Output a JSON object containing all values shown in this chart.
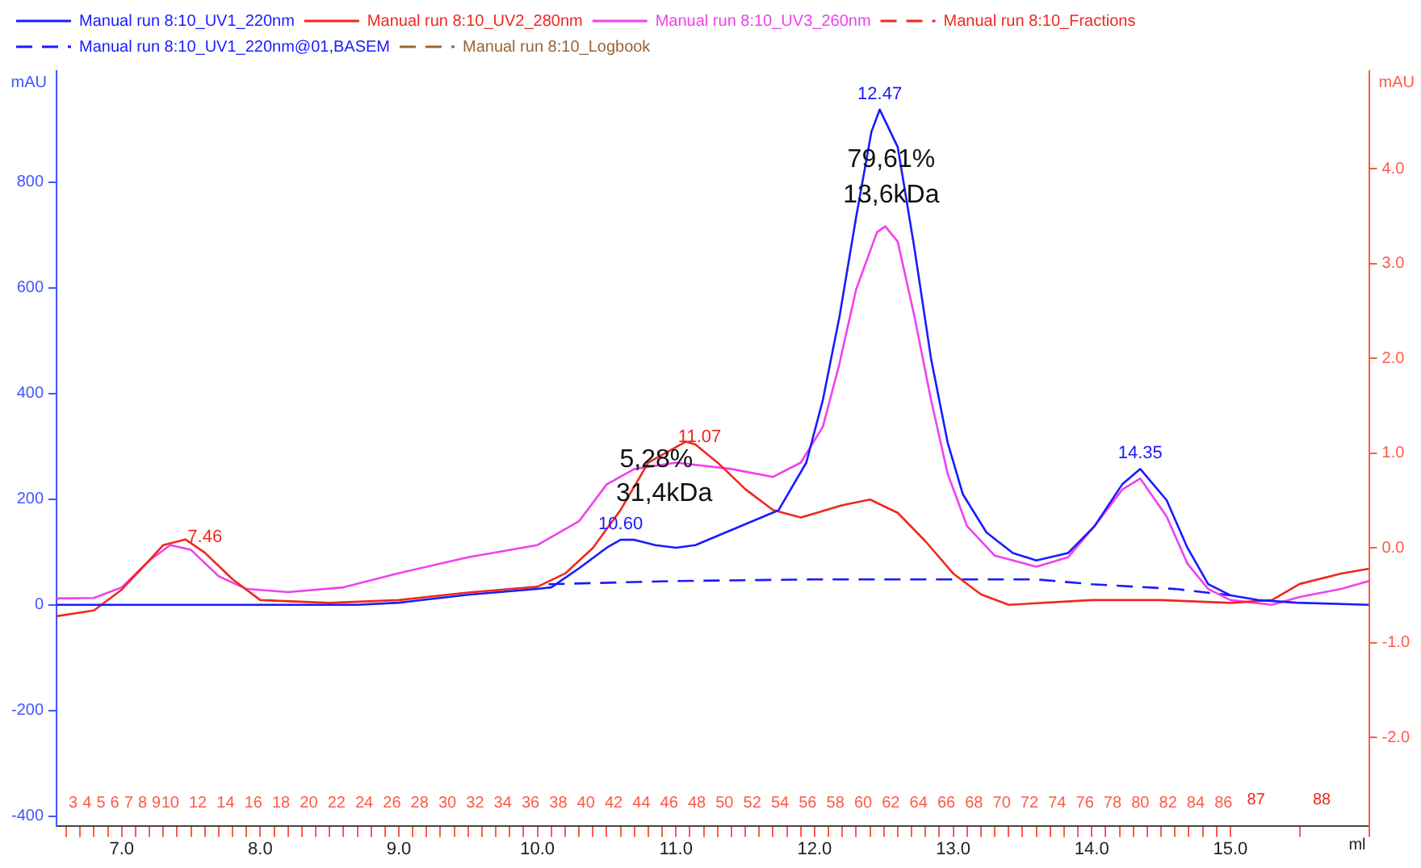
{
  "chart_data": {
    "type": "line",
    "xlabel": "ml",
    "ylabel": "mAU",
    "y2label": "mAU",
    "legend": "top left",
    "marker": "none",
    "xlim": [
      6.53,
      16.0
    ],
    "ylim": [
      -418,
      1010
    ],
    "y2lim": [
      -2.93,
      5.03
    ],
    "x2lim": [
      1.8,
      96.5
    ],
    "xticks": [
      {
        "value": 7,
        "label": "7.0"
      },
      {
        "value": 8,
        "label": "8.0"
      },
      {
        "value": 9,
        "label": "9.0"
      },
      {
        "value": 10,
        "label": "10.0"
      },
      {
        "value": 11,
        "label": "11.0"
      },
      {
        "value": 12,
        "label": "12.0"
      },
      {
        "value": 13,
        "label": "13.0"
      },
      {
        "value": 14,
        "label": "14.0"
      },
      {
        "value": 15,
        "label": "15.0"
      }
    ],
    "yticks": [
      -400,
      -200,
      0,
      200,
      400,
      600,
      800
    ],
    "y2ticks": [
      {
        "value": -2,
        "label": "-2.0"
      },
      {
        "value": -1,
        "label": "-1.0"
      },
      {
        "value": 0,
        "label": "0.0"
      },
      {
        "value": 1,
        "label": "1.0"
      },
      {
        "value": 2,
        "label": "2.0"
      },
      {
        "value": 3,
        "label": "3.0"
      },
      {
        "value": 4,
        "label": "4.0"
      }
    ],
    "x2ticks": [
      {
        "value": 2.5,
        "label": null
      },
      {
        "value": 3.5,
        "label": null
      },
      {
        "value": 4.5,
        "label": null
      },
      {
        "value": 5.5,
        "label": null
      },
      {
        "value": 6.5,
        "label": null
      },
      {
        "value": 7.5,
        "label": null
      },
      {
        "value": 8.5,
        "label": null
      },
      {
        "value": 9.5,
        "label": null
      },
      {
        "value": 10.5,
        "label": null
      },
      {
        "value": 11.5,
        "label": null
      },
      {
        "value": 12.5,
        "label": null
      },
      {
        "value": 13.5,
        "label": null
      },
      {
        "value": 14.5,
        "label": null
      },
      {
        "value": 15.5,
        "label": null
      },
      {
        "value": 16.5,
        "label": null
      },
      {
        "value": 17.5,
        "label": null
      },
      {
        "value": 18.5,
        "label": null
      },
      {
        "value": 19.5,
        "label": null
      },
      {
        "value": 20.5,
        "label": null
      },
      {
        "value": 21.5,
        "label": null
      },
      {
        "value": 22.5,
        "label": null
      },
      {
        "value": 23.5,
        "label": null
      },
      {
        "value": 24.5,
        "label": null
      },
      {
        "value": 25.5,
        "label": null
      },
      {
        "value": 26.5,
        "label": null
      },
      {
        "value": 27.5,
        "label": null
      },
      {
        "value": 28.5,
        "label": null
      },
      {
        "value": 29.5,
        "label": null
      },
      {
        "value": 30.5,
        "label": null
      },
      {
        "value": 31.5,
        "label": null
      },
      {
        "value": 32.5,
        "label": null
      },
      {
        "value": 33.5,
        "label": null
      },
      {
        "value": 34.5,
        "label": null
      },
      {
        "value": 35.5,
        "label": null
      },
      {
        "value": 36.5,
        "label": null
      },
      {
        "value": 37.5,
        "label": null
      },
      {
        "value": 38.5,
        "label": null
      },
      {
        "value": 39.5,
        "label": null
      },
      {
        "value": 40.5,
        "label": null
      },
      {
        "value": 41.5,
        "label": null
      },
      {
        "value": 42.5,
        "label": null
      },
      {
        "value": 43.5,
        "label": null
      },
      {
        "value": 44.5,
        "label": null
      },
      {
        "value": 45.5,
        "label": null
      },
      {
        "value": 46.5,
        "label": null
      },
      {
        "value": 47.5,
        "label": null
      },
      {
        "value": 48.5,
        "label": null
      },
      {
        "value": 49.5,
        "label": null
      },
      {
        "value": 50.5,
        "label": null
      },
      {
        "value": 51.5,
        "label": null
      },
      {
        "value": 52.5,
        "label": null
      },
      {
        "value": 53.5,
        "label": null
      },
      {
        "value": 54.5,
        "label": null
      },
      {
        "value": 55.5,
        "label": null
      },
      {
        "value": 56.5,
        "label": null
      },
      {
        "value": 57.5,
        "label": null
      },
      {
        "value": 58.5,
        "label": null
      },
      {
        "value": 59.5,
        "label": null
      },
      {
        "value": 60.5,
        "label": null
      },
      {
        "value": 61.5,
        "label": null
      },
      {
        "value": 62.5,
        "label": null
      },
      {
        "value": 63.5,
        "label": null
      },
      {
        "value": 64.5,
        "label": null
      },
      {
        "value": 65.5,
        "label": null
      },
      {
        "value": 66.5,
        "label": null
      },
      {
        "value": 67.5,
        "label": null
      },
      {
        "value": 68.5,
        "label": null
      },
      {
        "value": 69.5,
        "label": null
      },
      {
        "value": 70.5,
        "label": null
      },
      {
        "value": 71.5,
        "label": null
      },
      {
        "value": 72.5,
        "label": null
      },
      {
        "value": 73.5,
        "label": null
      },
      {
        "value": 74.5,
        "label": null
      },
      {
        "value": 75.5,
        "label": null
      },
      {
        "value": 76.5,
        "label": null
      },
      {
        "value": 77.5,
        "label": null
      },
      {
        "value": 78.5,
        "label": null
      },
      {
        "value": 79.5,
        "label": null
      },
      {
        "value": 80.5,
        "label": null
      },
      {
        "value": 81.5,
        "label": null
      },
      {
        "value": 82.5,
        "label": null
      },
      {
        "value": 83.5,
        "label": null
      },
      {
        "value": 84.5,
        "label": null
      },
      {
        "value": 85.5,
        "label": null
      },
      {
        "value": 86.5,
        "label": null
      },
      {
        "value": 91.5,
        "label": null
      },
      {
        "value": 96.5,
        "label": null
      },
      3,
      4,
      5,
      6,
      7,
      8,
      9,
      10,
      12,
      14,
      16,
      18,
      20,
      22,
      24,
      26,
      28,
      30,
      32,
      34,
      36,
      38,
      40,
      42,
      44,
      46,
      48,
      50,
      52,
      54,
      56,
      58,
      60,
      62,
      64,
      66,
      68,
      70,
      72,
      74,
      76,
      78,
      80,
      82,
      84,
      86
    ],
    "annotations": [
      "5,28%",
      "31,4kDa",
      "79,61%",
      "13,6kDa",
      "7.46",
      "11.07",
      "87",
      "88",
      {
        "text": "10.60",
        "x": 10.6,
        "y": 123
      },
      {
        "text": "12.47",
        "x": 12.47,
        "y": 937
      },
      {
        "text": "14.35",
        "x": 14.35,
        "y": 257
      }
    ],
    "series": [
      {
        "name": "Manual run 8:10_UV1_220nm",
        "color": "#1a1aff",
        "x": [
          6.53,
          7.0,
          8.0,
          8.7,
          9.0,
          9.5,
          10.0,
          10.1,
          10.3,
          10.5,
          10.6,
          10.7,
          10.85,
          11.0,
          11.14,
          11.74,
          11.94,
          12.06,
          12.18,
          12.3,
          12.41,
          12.47,
          12.6,
          12.72,
          12.84,
          12.96,
          13.07,
          13.24,
          13.43,
          13.6,
          13.83,
          14.02,
          14.22,
          14.35,
          14.54,
          14.69,
          14.84,
          15.0,
          15.2,
          15.48,
          16.0
        ],
        "values": [
          0,
          0,
          0,
          0,
          4,
          19,
          30,
          33,
          69,
          108,
          123,
          123,
          113,
          108,
          113,
          179,
          269,
          388,
          546,
          734,
          895,
          937,
          866,
          675,
          466,
          307,
          209,
          137,
          98,
          84,
          98,
          149,
          228,
          257,
          198,
          108,
          39,
          18,
          9,
          4,
          0
        ]
      },
      {
        "name": "Manual run 8:10_UV2_280nm",
        "color": "#f0281e",
        "axis": "y2",
        "x": [
          6.53,
          6.8,
          7.0,
          7.2,
          7.3,
          7.46,
          7.6,
          7.8,
          8.0,
          8.5,
          9.0,
          9.5,
          10.0,
          10.2,
          10.4,
          10.6,
          10.8,
          11.07,
          11.14,
          11.3,
          11.5,
          11.7,
          11.9,
          12.2,
          12.4,
          12.6,
          12.8,
          13.0,
          13.2,
          13.4,
          14.0,
          14.5,
          15.0,
          15.3,
          15.5,
          15.8,
          16.0
        ],
        "values": [
          -0.72,
          -0.66,
          -0.44,
          -0.13,
          0.03,
          0.09,
          -0.05,
          -0.33,
          -0.55,
          -0.58,
          -0.55,
          -0.47,
          -0.41,
          -0.27,
          0.0,
          0.4,
          0.9,
          1.12,
          1.09,
          0.9,
          0.62,
          0.4,
          0.32,
          0.45,
          0.51,
          0.37,
          0.07,
          -0.27,
          -0.49,
          -0.6,
          -0.55,
          -0.55,
          -0.58,
          -0.55,
          -0.38,
          -0.27,
          -0.22
        ]
      },
      {
        "name": "Manual run 8:10_UV3_260nm",
        "color": "#f040f0",
        "x": [
          6.53,
          6.8,
          7.0,
          7.2,
          7.35,
          7.5,
          7.7,
          7.9,
          8.2,
          8.6,
          9.0,
          9.5,
          10.0,
          10.3,
          10.5,
          10.7,
          11.0,
          11.4,
          11.7,
          11.9,
          12.06,
          12.18,
          12.3,
          12.45,
          12.51,
          12.6,
          12.72,
          12.84,
          12.96,
          13.1,
          13.3,
          13.6,
          13.83,
          14.02,
          14.22,
          14.35,
          14.54,
          14.69,
          14.84,
          15.0,
          15.3,
          15.5,
          15.8,
          16.0
        ],
        "values": [
          12,
          13,
          33,
          84,
          113,
          104,
          54,
          30,
          24,
          33,
          60,
          90,
          113,
          158,
          228,
          257,
          269,
          257,
          242,
          269,
          337,
          457,
          597,
          705,
          716,
          687,
          546,
          388,
          248,
          149,
          93,
          72,
          90,
          149,
          218,
          239,
          167,
          78,
          30,
          9,
          0,
          15,
          30,
          45
        ]
      },
      {
        "name": "Manual run 8:10_Fractions",
        "color": "#f0281e",
        "line_style": "dashed"
      },
      {
        "name": "Manual run 8:10_UV1_220nm@01,BASEM",
        "color": "#1a1aff",
        "line_style": "dashed",
        "x": [
          10.08,
          11.0,
          12.0,
          13.0,
          13.6,
          14.0,
          14.6,
          15.0
        ],
        "values": [
          39,
          45,
          48,
          48,
          48,
          39,
          30,
          18
        ]
      },
      {
        "name": "Manual run 8:10_Logbook",
        "color": "#996633",
        "line_style": "dashed"
      }
    ]
  }
}
